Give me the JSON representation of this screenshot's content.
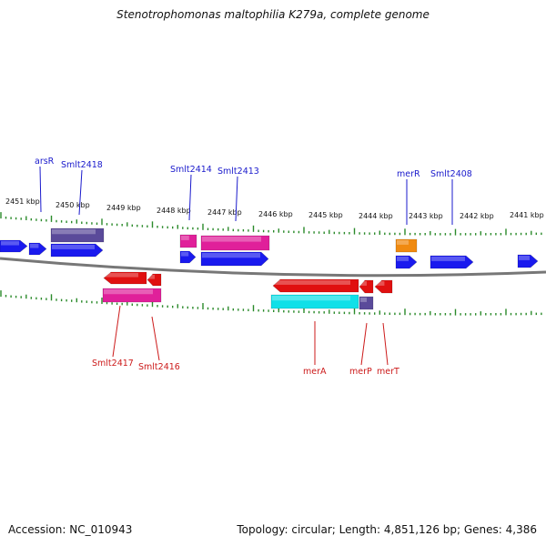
{
  "title": "Stenotrophomonas maltophilia K279a, complete genome",
  "footer": {
    "accession": "Accession: NC_010943",
    "topology": "Topology: circular; Length: 4,851,126 bp; Genes: 4,386"
  },
  "colors": {
    "forward_cds": "#1a1aee",
    "reverse_cds": "#e01010",
    "forward_gene": "#e0209a",
    "reverse_gene": "#e0209a",
    "cyan_feature": "#10e0e8",
    "purple_feature": "#5a4a9a",
    "orange_feature": "#f08a10",
    "tick_mark": "#2a8a2a",
    "backbone": "#777777",
    "label_top": "#1a1acc",
    "label_bottom": "#cc1a1a"
  },
  "scale_ticks": [
    "2451 kbp",
    "2450 kbp",
    "2449 kbp",
    "2448 kbp",
    "2447 kbp",
    "2446 kbp",
    "2445 kbp",
    "2444 kbp",
    "2443 kbp",
    "2442 kbp",
    "2441 kbp"
  ],
  "top_gene_labels": [
    "arsR",
    "Smlt2418",
    "Smlt2414",
    "Smlt2413",
    "merR",
    "Smlt2408"
  ],
  "bottom_gene_labels": [
    "Smlt2417",
    "Smlt2416",
    "merA",
    "merP",
    "merT"
  ]
}
